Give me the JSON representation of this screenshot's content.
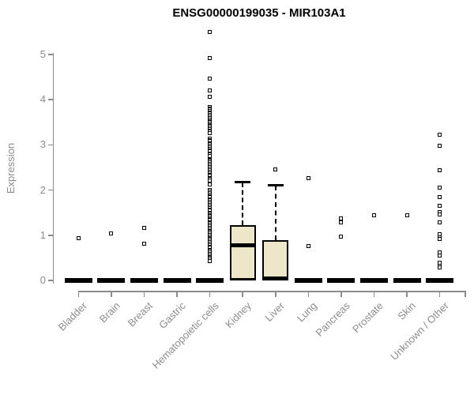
{
  "title": "ENSG00000199035 - MIR103A1",
  "chart_data": {
    "type": "boxplot",
    "title": "ENSG00000199035 - MIR103A1",
    "xlabel": "",
    "ylabel": "Expression",
    "ylim": [
      0,
      5.6
    ],
    "yticks": [
      0,
      1,
      2,
      3,
      4,
      5
    ],
    "grid": false,
    "legend": "none",
    "axis_color": "#8c8c8c",
    "text_color": "#8c8c8c",
    "box_fill": "#EDE6C8",
    "box_border": "#000000",
    "categories": [
      "Bladder",
      "Brain",
      "Breast",
      "Gastric",
      "Hematopoietic cells",
      "Kidney",
      "Liver",
      "Lung",
      "Pancreas",
      "Prostate",
      "Skin",
      "Unknown / Other"
    ],
    "series": [
      {
        "category": "Bladder",
        "q1": 0,
        "median": 0,
        "q3": 0,
        "whisker_low": 0,
        "whisker_high": 0,
        "outliers": [
          0.93
        ]
      },
      {
        "category": "Brain",
        "q1": 0,
        "median": 0,
        "q3": 0,
        "whisker_low": 0,
        "whisker_high": 0,
        "outliers": [
          1.04
        ]
      },
      {
        "category": "Breast",
        "q1": 0,
        "median": 0,
        "q3": 0,
        "whisker_low": 0,
        "whisker_high": 0,
        "outliers": [
          1.17,
          0.82
        ]
      },
      {
        "category": "Gastric",
        "q1": 0,
        "median": 0,
        "q3": 0,
        "whisker_low": 0,
        "whisker_high": 0,
        "outliers": []
      },
      {
        "category": "Hematopoietic cells",
        "q1": 0,
        "median": 0,
        "q3": 0,
        "whisker_low": 0,
        "whisker_high": 0,
        "outliers": [
          5.49,
          4.92,
          4.46,
          4.2,
          4.06,
          3.84,
          3.81,
          3.78,
          3.75,
          3.72,
          3.69,
          3.66,
          3.62,
          3.59,
          3.56,
          3.53,
          3.5,
          3.47,
          3.44,
          3.41,
          3.38,
          3.35,
          3.32,
          3.29,
          3.26,
          3.14,
          3.11,
          3.08,
          3.04,
          3.01,
          2.98,
          2.95,
          2.91,
          2.88,
          2.85,
          2.81,
          2.78,
          2.75,
          2.67,
          2.64,
          2.61,
          2.57,
          2.54,
          2.51,
          2.47,
          2.44,
          2.41,
          2.37,
          2.34,
          2.31,
          2.27,
          2.24,
          2.21,
          2.12,
          2.0,
          1.97,
          1.94,
          1.9,
          1.87,
          1.84,
          1.8,
          1.77,
          1.74,
          1.7,
          1.67,
          1.64,
          1.6,
          1.57,
          1.54,
          1.5,
          1.47,
          1.44,
          1.42,
          1.39,
          1.36,
          1.33,
          1.29,
          1.26,
          1.23,
          1.2,
          1.17,
          1.13,
          1.1,
          1.07,
          1.04,
          1.01,
          0.97,
          0.94,
          0.91,
          0.88,
          0.85,
          0.81,
          0.78,
          0.75,
          0.72,
          0.68,
          0.65,
          0.62,
          0.59,
          0.55,
          0.52,
          0.49,
          0.46,
          0.42
        ]
      },
      {
        "category": "Kidney",
        "q1": 0,
        "median": 0.77,
        "q3": 1.22,
        "whisker_low": 0,
        "whisker_high": 2.17,
        "outliers": []
      },
      {
        "category": "Liver",
        "q1": 0,
        "median": 0.03,
        "q3": 0.9,
        "whisker_low": 0,
        "whisker_high": 2.1,
        "outliers": [
          2.45
        ]
      },
      {
        "category": "Lung",
        "q1": 0,
        "median": 0,
        "q3": 0,
        "whisker_low": 0,
        "whisker_high": 0,
        "outliers": [
          2.26,
          0.76
        ]
      },
      {
        "category": "Pancreas",
        "q1": 0,
        "median": 0,
        "q3": 0,
        "whisker_low": 0,
        "whisker_high": 0,
        "outliers": [
          1.38,
          1.28,
          0.97
        ]
      },
      {
        "category": "Prostate",
        "q1": 0,
        "median": 0,
        "q3": 0,
        "whisker_low": 0,
        "whisker_high": 0,
        "outliers": [
          1.44
        ]
      },
      {
        "category": "Skin",
        "q1": 0,
        "median": 0,
        "q3": 0,
        "whisker_low": 0,
        "whisker_high": 0,
        "outliers": [
          1.44
        ]
      },
      {
        "category": "Unknown / Other",
        "q1": 0,
        "median": 0,
        "q3": 0,
        "whisker_low": 0,
        "whisker_high": 0,
        "outliers": [
          3.22,
          2.98,
          2.44,
          2.05,
          1.85,
          1.65,
          1.52,
          1.46,
          1.28,
          1.02,
          0.96,
          0.91,
          0.62,
          0.55,
          0.4,
          0.33,
          0.28
        ]
      }
    ]
  }
}
